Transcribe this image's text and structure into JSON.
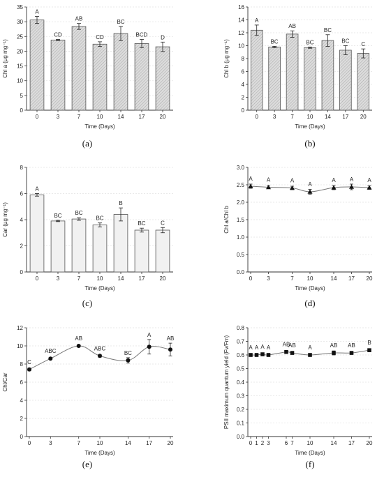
{
  "panel_labels": [
    "(a)",
    "(b)",
    "(c)",
    "(d)",
    "(e)",
    "(f)"
  ],
  "chart_data": [
    {
      "type": "bar",
      "panel": "(a)",
      "categories": [
        "0",
        "3",
        "7",
        "10",
        "14",
        "17",
        "20"
      ],
      "values": [
        30.6,
        23.8,
        28.4,
        22.4,
        26.0,
        22.6,
        21.5
      ],
      "errors": [
        1.2,
        0.2,
        1.0,
        0.8,
        2.4,
        1.4,
        1.6
      ],
      "letters": [
        "A",
        "CD",
        "AB",
        "CD",
        "BC",
        "BCD",
        "D"
      ],
      "xlabel": "Time (Days)",
      "ylabel": "Chl a (µg mg⁻¹)",
      "ylim": [
        0,
        35
      ],
      "yticks": [
        "0",
        "5",
        "10",
        "15",
        "20",
        "25",
        "30",
        "35"
      ],
      "grid": true,
      "fill": "hatched gray"
    },
    {
      "type": "bar",
      "panel": "(b)",
      "categories": [
        "0",
        "3",
        "7",
        "10",
        "14",
        "17",
        "20"
      ],
      "values": [
        12.4,
        9.8,
        11.8,
        9.7,
        10.8,
        9.3,
        8.8
      ],
      "errors": [
        0.8,
        0.1,
        0.5,
        0.1,
        0.9,
        0.7,
        0.7
      ],
      "letters": [
        "A",
        "BC",
        "AB",
        "BC",
        "BC",
        "BC",
        "C"
      ],
      "xlabel": "Time (Days)",
      "ylabel": "Chl b (µg mg⁻¹)",
      "ylim": [
        0,
        16
      ],
      "yticks": [
        "0",
        "2",
        "4",
        "6",
        "8",
        "10",
        "12",
        "14",
        "16"
      ],
      "grid": true,
      "fill": "hatched gray"
    },
    {
      "type": "bar",
      "panel": "(c)",
      "categories": [
        "0",
        "3",
        "7",
        "10",
        "14",
        "17",
        "20"
      ],
      "values": [
        5.9,
        3.9,
        4.05,
        3.6,
        4.4,
        3.2,
        3.2
      ],
      "errors": [
        0.1,
        0.05,
        0.1,
        0.15,
        0.5,
        0.15,
        0.2
      ],
      "letters": [
        "A",
        "BC",
        "BC",
        "BC",
        "B",
        "BC",
        "C"
      ],
      "xlabel": "Time (Days)",
      "ylabel": "Car (µg mg⁻¹)",
      "ylim": [
        0,
        8
      ],
      "yticks": [
        "0",
        "2",
        "4",
        "6",
        "8"
      ],
      "grid": true,
      "fill": "light gray"
    },
    {
      "type": "line",
      "panel": "(d)",
      "x": [
        0,
        3,
        7,
        10,
        14,
        17,
        20
      ],
      "y": [
        2.46,
        2.43,
        2.41,
        2.3,
        2.42,
        2.44,
        2.42
      ],
      "errors": [
        0.06,
        0.04,
        0.05,
        0.07,
        0.06,
        0.08,
        0.05
      ],
      "letters": [
        "A",
        "A",
        "A",
        "A",
        "A",
        "A",
        "A"
      ],
      "marker": "triangle",
      "xlabel": "Time (Days)",
      "ylabel": "Chl a/Chl b",
      "xlim": [
        0,
        20
      ],
      "ylim": [
        0,
        3.0
      ],
      "xticks": [
        "0",
        "3",
        "7",
        "10",
        "14",
        "17",
        "20"
      ],
      "yticks": [
        "0.0",
        "0.5",
        "1.0",
        "1.5",
        "2.0",
        "2.5",
        "3.0"
      ],
      "grid": true
    },
    {
      "type": "line",
      "panel": "(e)",
      "x": [
        0,
        3,
        7,
        10,
        14,
        17,
        20
      ],
      "y": [
        7.4,
        8.6,
        10.0,
        8.9,
        8.4,
        9.9,
        9.6
      ],
      "errors": [
        0.15,
        0.1,
        0.1,
        0.15,
        0.3,
        0.8,
        0.7
      ],
      "letters": [
        "C",
        "ABC",
        "AB",
        "ABC",
        "BC",
        "A",
        "AB"
      ],
      "marker": "circle",
      "xlabel": "Time (Days)",
      "ylabel": "Chl/Car",
      "xlim": [
        0,
        20
      ],
      "ylim": [
        0,
        12
      ],
      "xticks": [
        "0",
        "3",
        "7",
        "10",
        "14",
        "17",
        "20"
      ],
      "yticks": [
        "0",
        "2",
        "4",
        "6",
        "8",
        "10",
        "12"
      ],
      "grid": true
    },
    {
      "type": "line",
      "panel": "(f)",
      "x": [
        0,
        1,
        2,
        3,
        6,
        7,
        10,
        14,
        17,
        20
      ],
      "y": [
        0.6,
        0.6,
        0.605,
        0.6,
        0.622,
        0.615,
        0.6,
        0.615,
        0.615,
        0.635
      ],
      "errors": [
        0.005,
        0.004,
        0.004,
        0.004,
        0.008,
        0.006,
        0.005,
        0.015,
        0.01,
        0.01
      ],
      "letters": [
        "A",
        "A",
        "A",
        "A",
        "AB",
        "AB",
        "A",
        "AB",
        "AB",
        "B"
      ],
      "marker": "square",
      "xlabel": "Time (Days)",
      "ylabel": "PSII maximum quantum yield (Fv/Fm)",
      "xlim": [
        0,
        20
      ],
      "ylim": [
        0,
        0.8
      ],
      "xticks": [
        "0",
        "1",
        "2",
        "3",
        "6",
        "7",
        "10",
        "14",
        "17",
        "20"
      ],
      "yticks": [
        "0.0",
        "0.1",
        "0.2",
        "0.3",
        "0.4",
        "0.5",
        "0.6",
        "0.7",
        "0.8"
      ],
      "grid": true
    }
  ]
}
